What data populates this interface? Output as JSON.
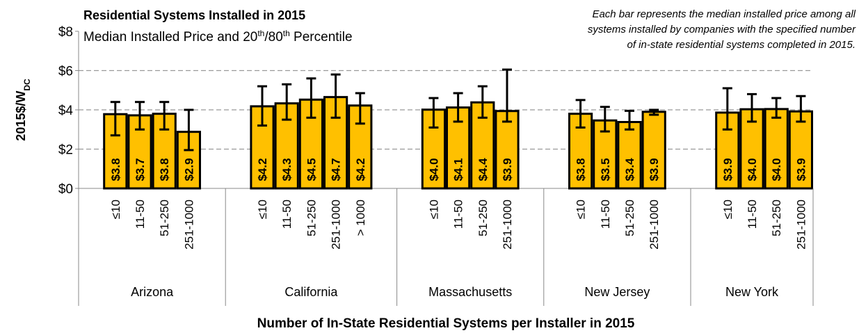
{
  "chart_data": {
    "type": "bar",
    "title": "Residential Systems Installed in 2015",
    "subtitle": [
      "Median Installed Price and 20",
      "th",
      "/80",
      "th",
      " Percentile"
    ],
    "annotation": [
      "Each bar represents the median installed price among all",
      "systems installed by companies with the specified number",
      "of in-state residential systems completed in 2015."
    ],
    "y_label": [
      "2015$/W",
      "DC"
    ],
    "x_label": "Number of In-State Residential Systems per Installer in 2015",
    "color": "#ffc000",
    "ylim": [
      0,
      8
    ],
    "yticks": [
      {
        "value": 0,
        "label": "$0"
      },
      {
        "value": 2,
        "label": "$2"
      },
      {
        "value": 4,
        "label": "$4"
      },
      {
        "value": 6,
        "label": "$6"
      },
      {
        "value": 8,
        "label": "$8"
      }
    ],
    "grid": true,
    "groups": [
      {
        "name": "Arizona",
        "categories": [
          "≤10",
          "11-50",
          "51-250",
          "251-1000"
        ],
        "values": [
          3.78,
          3.72,
          3.8,
          2.88
        ],
        "value_labels": [
          "$3.8",
          "$3.7",
          "$3.8",
          "$2.9"
        ],
        "low": [
          2.7,
          3.0,
          3.0,
          1.95
        ],
        "high": [
          4.4,
          4.4,
          4.4,
          4.0
        ]
      },
      {
        "name": "California",
        "categories": [
          "≤10",
          "11-50",
          "51-250",
          "251-1000",
          "> 1000"
        ],
        "values": [
          4.18,
          4.33,
          4.52,
          4.65,
          4.22
        ],
        "value_labels": [
          "$4.2",
          "$4.3",
          "$4.5",
          "$4.7",
          "$4.2"
        ],
        "low": [
          3.2,
          3.5,
          3.6,
          3.6,
          3.3
        ],
        "high": [
          5.2,
          5.3,
          5.6,
          5.8,
          4.85
        ]
      },
      {
        "name": "Massachusetts",
        "categories": [
          "≤10",
          "11-50",
          "51-250",
          "251-1000"
        ],
        "values": [
          4.01,
          4.12,
          4.38,
          3.94
        ],
        "value_labels": [
          "$4.0",
          "$4.1",
          "$4.4",
          "$3.9"
        ],
        "low": [
          3.1,
          3.4,
          3.6,
          3.4
        ],
        "high": [
          4.6,
          4.85,
          5.2,
          6.05
        ]
      },
      {
        "name": "New Jersey",
        "categories": [
          "≤10",
          "11-50",
          "51-250",
          "251-1000"
        ],
        "values": [
          3.8,
          3.46,
          3.38,
          3.9
        ],
        "value_labels": [
          "$3.8",
          "$3.5",
          "$3.4",
          "$3.9"
        ],
        "low": [
          3.1,
          2.9,
          3.0,
          3.75
        ],
        "high": [
          4.5,
          4.15,
          3.95,
          4.0
        ]
      },
      {
        "name": "New York",
        "categories": [
          "≤10",
          "11-50",
          "51-250",
          "251-1000"
        ],
        "values": [
          3.86,
          4.03,
          4.04,
          3.92
        ],
        "value_labels": [
          "$3.9",
          "$4.0",
          "$4.0",
          "$3.9"
        ],
        "low": [
          3.0,
          3.4,
          3.6,
          3.4
        ],
        "high": [
          5.1,
          4.8,
          4.6,
          4.7
        ]
      }
    ]
  }
}
